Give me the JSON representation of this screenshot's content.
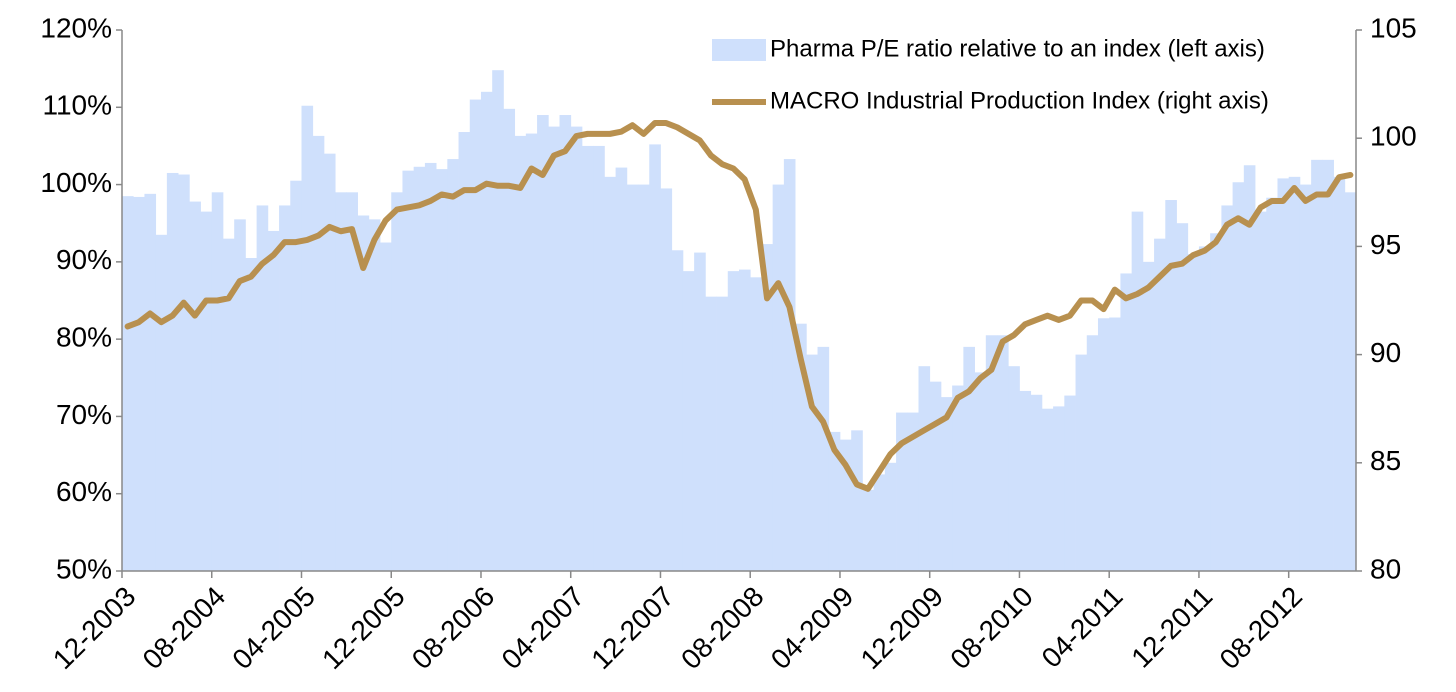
{
  "chart_data": {
    "type": "combo",
    "categories": [
      "12-2003",
      null,
      null,
      null,
      null,
      null,
      null,
      null,
      "08-2004",
      null,
      null,
      null,
      null,
      null,
      null,
      null,
      "04-2005",
      null,
      null,
      null,
      null,
      null,
      null,
      null,
      "12-2005",
      null,
      null,
      null,
      null,
      null,
      null,
      null,
      "08-2006",
      null,
      null,
      null,
      null,
      null,
      null,
      null,
      "04-2007",
      null,
      null,
      null,
      null,
      null,
      null,
      null,
      "12-2007",
      null,
      null,
      null,
      null,
      null,
      null,
      null,
      "08-2008",
      null,
      null,
      null,
      null,
      null,
      null,
      null,
      "04-2009",
      null,
      null,
      null,
      null,
      null,
      null,
      null,
      "12-2009",
      null,
      null,
      null,
      null,
      null,
      null,
      null,
      "08-2010",
      null,
      null,
      null,
      null,
      null,
      null,
      null,
      "04-2011",
      null,
      null,
      null,
      null,
      null,
      null,
      null,
      "12-2011",
      null,
      null,
      null,
      null,
      null,
      null,
      null,
      "08-2012",
      null,
      null,
      null,
      null,
      null
    ],
    "series": [
      {
        "name": "Pharma P/E ratio relative to an index (left axis)",
        "type": "bar",
        "color": "#cfe0fc",
        "values": [
          98.5,
          98.4,
          98.8,
          93.5,
          101.5,
          101.3,
          97.8,
          96.5,
          99,
          93,
          95.5,
          90.5,
          97.3,
          94,
          97.3,
          100.5,
          110.2,
          106.3,
          104,
          99,
          99,
          96,
          95.5,
          92.5,
          99,
          101.8,
          102.3,
          102.8,
          102,
          103.3,
          106.8,
          111,
          112,
          114.8,
          109.8,
          106.3,
          106.6,
          109,
          107.5,
          109,
          107.5,
          105,
          105,
          101,
          102.2,
          100,
          100,
          105.2,
          99.5,
          91.5,
          88.8,
          91.2,
          85.5,
          85.5,
          88.8,
          89,
          88,
          92.3,
          100,
          103.3,
          82,
          78,
          79,
          68,
          67,
          68.2,
          60.5,
          62.5,
          64,
          70.5,
          70.5,
          76.5,
          74.5,
          72.5,
          74,
          79,
          75.7,
          80.5,
          80.5,
          76.5,
          73.3,
          72.8,
          71,
          71.3,
          72.7,
          78,
          80.5,
          82.7,
          82.8,
          88.5,
          96.5,
          90,
          93,
          98,
          95,
          91,
          92,
          93.7,
          97.3,
          100.3,
          102.5,
          96.5,
          98.3,
          100.8,
          101,
          100,
          103.2,
          103.2,
          101,
          99
        ]
      },
      {
        "name": "MACRO Industrial Production Index (right axis)",
        "type": "line",
        "axis": "y2",
        "color": "#b8904f",
        "values": [
          91.3,
          91.5,
          91.9,
          91.5,
          91.8,
          92.4,
          91.8,
          92.5,
          92.5,
          92.6,
          93.4,
          93.6,
          94.2,
          94.6,
          95.2,
          95.2,
          95.3,
          95.5,
          95.9,
          95.7,
          95.8,
          94.0,
          95.3,
          96.2,
          96.7,
          96.8,
          96.9,
          97.1,
          97.4,
          97.3,
          97.6,
          97.6,
          97.9,
          97.8,
          97.8,
          97.7,
          98.6,
          98.3,
          99.2,
          99.4,
          100.1,
          100.2,
          100.2,
          100.2,
          100.3,
          100.6,
          100.2,
          100.7,
          100.7,
          100.5,
          100.2,
          99.9,
          99.2,
          98.8,
          98.6,
          98.1,
          96.7,
          92.6,
          93.3,
          92.2,
          89.8,
          87.6,
          86.9,
          85.6,
          84.9,
          84.0,
          83.8,
          84.6,
          85.4,
          85.9,
          86.2,
          86.5,
          86.8,
          87.1,
          88.0,
          88.3,
          88.9,
          89.3,
          90.6,
          90.9,
          91.4,
          91.6,
          91.8,
          91.6,
          91.8,
          92.5,
          92.5,
          92.1,
          93.0,
          92.6,
          92.8,
          93.1,
          93.6,
          94.1,
          94.2,
          94.6,
          94.8,
          95.2,
          96.0,
          96.3,
          96.0,
          96.8,
          97.1,
          97.1,
          97.7,
          97.1,
          97.4,
          97.4,
          98.2,
          98.3
        ]
      }
    ],
    "ylim": [
      50,
      120
    ],
    "yticks": [
      {
        "value": 50,
        "label": "50%"
      },
      {
        "value": 60,
        "label": "60%"
      },
      {
        "value": 70,
        "label": "70%"
      },
      {
        "value": 80,
        "label": "80%"
      },
      {
        "value": 90,
        "label": "90%"
      },
      {
        "value": 100,
        "label": "100%"
      },
      {
        "value": 110,
        "label": "110%"
      },
      {
        "value": 120,
        "label": "120%"
      }
    ],
    "y2lim": [
      80,
      105
    ],
    "y2ticks": [
      80,
      85,
      90,
      95,
      100,
      105
    ],
    "grid": false,
    "legend": "upper right"
  }
}
